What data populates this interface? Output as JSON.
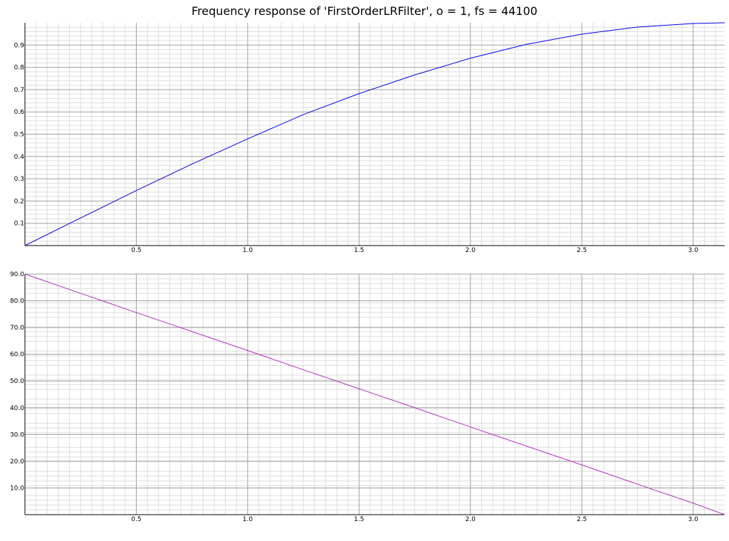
{
  "title": "Frequency response of 'FirstOrderLRFilter', o = 1, fs = 44100",
  "chart_data": [
    {
      "type": "line",
      "grid": true,
      "xlim": [
        0,
        3.14159
      ],
      "ylim": [
        0,
        1.0
      ],
      "x_ticks": [
        "0.5",
        "1.0",
        "1.5",
        "2.0",
        "2.5",
        "3.0"
      ],
      "x_tick_values": [
        0.5,
        1.0,
        1.5,
        2.0,
        2.5,
        3.0
      ],
      "y_ticks": [
        "0.1",
        "0.2",
        "0.3",
        "0.4",
        "0.5",
        "0.6",
        "0.7",
        "0.8",
        "0.9"
      ],
      "y_tick_values": [
        0.1,
        0.2,
        0.3,
        0.4,
        0.5,
        0.6,
        0.7,
        0.8,
        0.9
      ],
      "color": "#0000ee",
      "series": [
        {
          "x": [
            0,
            0.25,
            0.5,
            0.75,
            1.0,
            1.25,
            1.5,
            1.75,
            2.0,
            2.25,
            2.5,
            2.75,
            3.0,
            3.14159
          ],
          "values": [
            0.0,
            0.124,
            0.247,
            0.366,
            0.479,
            0.588,
            0.682,
            0.766,
            0.841,
            0.903,
            0.949,
            0.981,
            0.997,
            1.0
          ]
        }
      ]
    },
    {
      "type": "line",
      "grid": true,
      "xlim": [
        0,
        3.14159
      ],
      "ylim": [
        0,
        90
      ],
      "x_ticks": [
        "0.5",
        "1.0",
        "1.5",
        "2.0",
        "2.5",
        "3.0"
      ],
      "x_tick_values": [
        0.5,
        1.0,
        1.5,
        2.0,
        2.5,
        3.0
      ],
      "y_ticks": [
        "10.0",
        "20.0",
        "30.0",
        "40.0",
        "50.0",
        "60.0",
        "70.0",
        "80.0",
        "90.0"
      ],
      "y_tick_values": [
        10,
        20,
        30,
        40,
        50,
        60,
        70,
        80,
        90
      ],
      "color": "#b030c0",
      "series": [
        {
          "x": [
            0,
            0.25,
            0.5,
            0.75,
            1.0,
            1.25,
            1.5,
            1.75,
            2.0,
            2.25,
            2.5,
            2.75,
            3.0,
            3.14159
          ],
          "values": [
            90.0,
            82.8,
            75.6,
            68.5,
            61.4,
            54.2,
            47.1,
            40.0,
            32.8,
            25.7,
            18.6,
            11.4,
            4.3,
            0.0
          ]
        }
      ]
    }
  ]
}
